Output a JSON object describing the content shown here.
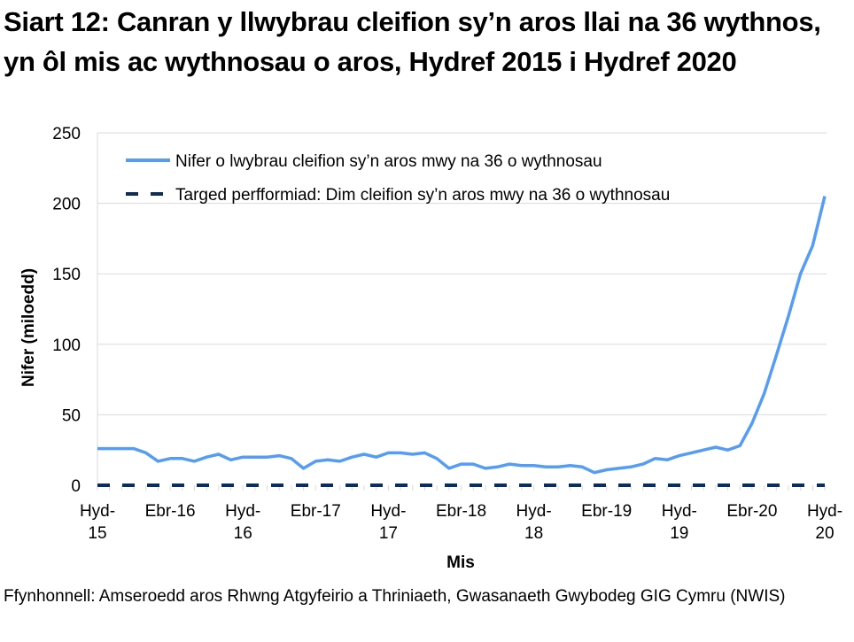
{
  "title": "Siart 12: Canran y llwybrau cleifion sy’n aros llai na 36 wythnos, yn ôl mis ac wythnosau o aros, Hydref 2015 i Hydref 2020",
  "source": "Ffynhonnell: Amseroedd aros Rhwng Atgyfeirio a Thriniaeth, Gwasanaeth Gwybodeg GIG Cymru (NWIS)",
  "colors": {
    "series_line": "#559cf5",
    "target_line": "#0b2d5e",
    "gridline": "#d9d9d9",
    "axis_text": "#000000"
  },
  "chart_data": {
    "type": "line",
    "title": "Siart 12: Canran y llwybrau cleifion sy’n aros llai na 36 wythnos, yn ôl mis ac wythnosau o aros, Hydref 2015 i Hydref 2020",
    "xlabel": "Mis",
    "ylabel": "Nifer (miloedd)",
    "ylim": [
      0,
      250
    ],
    "yticks": [
      0,
      50,
      100,
      150,
      200,
      250
    ],
    "grid": true,
    "legend_position": "top-inside",
    "x_tick_labels": [
      "Hyd-15",
      "Ebr-16",
      "Hyd-16",
      "Ebr-17",
      "Hyd-17",
      "Ebr-18",
      "Hyd-18",
      "Ebr-19",
      "Hyd-19",
      "Ebr-20",
      "Hyd-20"
    ],
    "x_tick_month_index": [
      0,
      6,
      12,
      18,
      24,
      30,
      36,
      42,
      48,
      54,
      60
    ],
    "x": [
      "Hyd-15",
      "Tach-15",
      "Rhag-15",
      "Ion-16",
      "Chwe-16",
      "Maw-16",
      "Ebr-16",
      "Mai-16",
      "Meh-16",
      "Gorff-16",
      "Awst-16",
      "Medi-16",
      "Hyd-16",
      "Tach-16",
      "Rhag-16",
      "Ion-17",
      "Chwe-17",
      "Maw-17",
      "Ebr-17",
      "Mai-17",
      "Meh-17",
      "Gorff-17",
      "Awst-17",
      "Medi-17",
      "Hyd-17",
      "Tach-17",
      "Rhag-17",
      "Ion-18",
      "Chwe-18",
      "Maw-18",
      "Ebr-18",
      "Mai-18",
      "Meh-18",
      "Gorff-18",
      "Awst-18",
      "Medi-18",
      "Hyd-18",
      "Tach-18",
      "Rhag-18",
      "Ion-19",
      "Chwe-19",
      "Maw-19",
      "Ebr-19",
      "Mai-19",
      "Meh-19",
      "Gorff-19",
      "Awst-19",
      "Medi-19",
      "Hyd-19",
      "Tach-19",
      "Rhag-19",
      "Ion-20",
      "Chwe-20",
      "Maw-20",
      "Ebr-20",
      "Mai-20",
      "Meh-20",
      "Gorff-20",
      "Awst-20",
      "Medi-20",
      "Hyd-20"
    ],
    "series": [
      {
        "name": "Nifer o lwybrau cleifion sy’n aros mwy na 36 o wythnosau",
        "style": "solid",
        "values": [
          26,
          26,
          26,
          26,
          23,
          17,
          19,
          19,
          17,
          20,
          22,
          18,
          20,
          20,
          20,
          21,
          19,
          12,
          17,
          18,
          17,
          20,
          22,
          20,
          23,
          23,
          22,
          23,
          19,
          12,
          15,
          15,
          12,
          13,
          15,
          14,
          14,
          13,
          13,
          14,
          13,
          9,
          11,
          12,
          13,
          15,
          19,
          18,
          21,
          23,
          25,
          27,
          25,
          28,
          44,
          65,
          92,
          120,
          150,
          170,
          205
        ]
      },
      {
        "name": "Targed perfformiad: Dim cleifion sy’n aros mwy na 36 o wythnosau",
        "style": "dashed",
        "values": [
          0,
          0,
          0,
          0,
          0,
          0,
          0,
          0,
          0,
          0,
          0,
          0,
          0,
          0,
          0,
          0,
          0,
          0,
          0,
          0,
          0,
          0,
          0,
          0,
          0,
          0,
          0,
          0,
          0,
          0,
          0,
          0,
          0,
          0,
          0,
          0,
          0,
          0,
          0,
          0,
          0,
          0,
          0,
          0,
          0,
          0,
          0,
          0,
          0,
          0,
          0,
          0,
          0,
          0,
          0,
          0,
          0,
          0,
          0,
          0,
          0
        ]
      }
    ]
  },
  "legend": {
    "items": [
      {
        "label": "Nifer o lwybrau cleifion sy’n aros mwy na 36 o wythnosau"
      },
      {
        "label": "Targed perfformiad: Dim cleifion sy’n aros mwy na 36 o wythnosau"
      }
    ]
  },
  "axes": {
    "y_ticks": [
      "0",
      "50",
      "100",
      "150",
      "200",
      "250"
    ],
    "x_ticks": [
      {
        "line1": "Hyd-",
        "line2": "15"
      },
      {
        "line1": "Ebr-16",
        "line2": ""
      },
      {
        "line1": "Hyd-",
        "line2": "16"
      },
      {
        "line1": "Ebr-17",
        "line2": ""
      },
      {
        "line1": "Hyd-",
        "line2": "17"
      },
      {
        "line1": "Ebr-18",
        "line2": ""
      },
      {
        "line1": "Hyd-",
        "line2": "18"
      },
      {
        "line1": "Ebr-19",
        "line2": ""
      },
      {
        "line1": "Hyd-",
        "line2": "19"
      },
      {
        "line1": "Ebr-20",
        "line2": ""
      },
      {
        "line1": "Hyd-",
        "line2": "20"
      }
    ],
    "x_title": "Mis",
    "y_title": "Nifer (miloedd)"
  }
}
